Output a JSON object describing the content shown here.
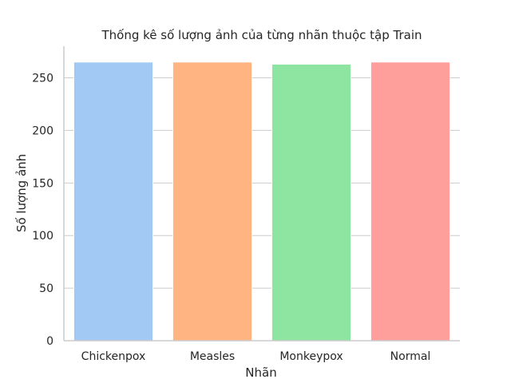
{
  "chart_data": {
    "type": "bar",
    "title": "Thống kê số lượng ảnh của từng nhãn thuộc tập Train",
    "xlabel": "Nhãn",
    "ylabel": "Số lượng ảnh",
    "categories": [
      "Chickenpox",
      "Measles",
      "Monkeypox",
      "Normal"
    ],
    "values": [
      265,
      265,
      263,
      265
    ],
    "ylim": [
      0,
      280
    ],
    "yticks": [
      0,
      50,
      100,
      150,
      200,
      250
    ],
    "grid": true,
    "colors": [
      "#a1c9f4",
      "#ffb482",
      "#8de5a1",
      "#ff9f9b"
    ],
    "gridColor": "#cccccc",
    "axisColor": "#cccccc"
  }
}
